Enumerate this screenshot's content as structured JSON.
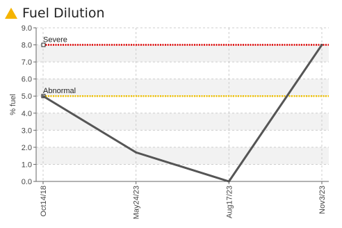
{
  "title": "Fuel Dilution",
  "icon": "warning-triangle-icon",
  "colors": {
    "icon": "#f5b400",
    "line": "#555555",
    "severe": "#e00000",
    "abnormal": "#f2c200",
    "band": "#f2f2f2",
    "grid": "#cccccc"
  },
  "chart_data": {
    "type": "line",
    "ylabel": "% fuel",
    "xlabel": "",
    "ylim": [
      0,
      9
    ],
    "yticks": [
      "0.0",
      "1.0",
      "2.0",
      "3.0",
      "4.0",
      "5.0",
      "6.0",
      "7.0",
      "8.0",
      "9.0"
    ],
    "ytick_values": [
      0,
      1,
      2,
      3,
      4,
      5,
      6,
      7,
      8,
      9
    ],
    "categories": [
      "Oct14/18",
      "May24/23",
      "Aug17/23",
      "Nov3/23"
    ],
    "series": [
      {
        "values": [
          5.0,
          1.7,
          0.0,
          8.0
        ]
      }
    ],
    "thresholds": [
      {
        "name": "Severe",
        "value": 8.0
      },
      {
        "name": "Abnormal",
        "value": 5.0
      }
    ],
    "grid": true
  }
}
